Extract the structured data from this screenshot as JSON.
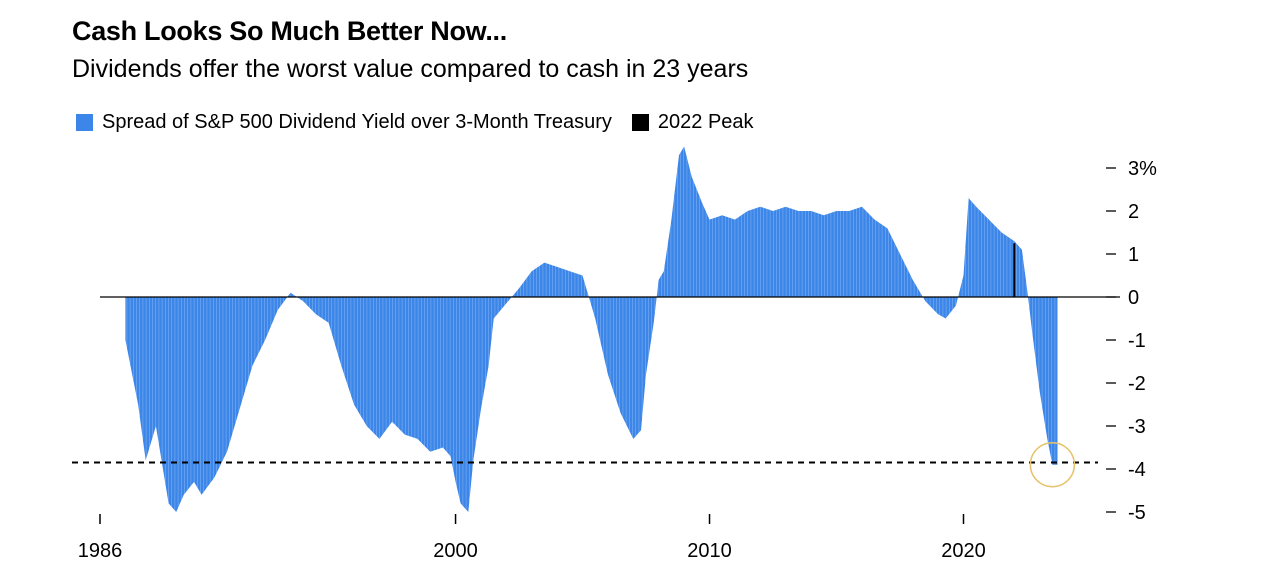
{
  "title": "Cash Looks So Much Better Now...",
  "subtitle": "Dividends offer the worst value compared to cash in 23 years",
  "legend": [
    {
      "label": "Spread of S&P 500 Dividend Yield over 3-Month Treasury",
      "color": "#3b86e8"
    },
    {
      "label": "2022 Peak",
      "color": "#000000"
    }
  ],
  "chart_data": {
    "type": "area",
    "xlim": [
      1986,
      2023.8
    ],
    "ylim": [
      -5.3,
      3.6
    ],
    "x_ticks": [
      1986,
      2000,
      2010,
      2020
    ],
    "x_tick_labels": [
      "1986",
      "2000",
      "2010",
      "2020"
    ],
    "y_ticks": [
      3,
      2,
      1,
      0,
      -1,
      -2,
      -3,
      -4,
      -5
    ],
    "y_tick_labels": [
      "3%",
      "2",
      "1",
      "0",
      "-1",
      "-2",
      "-3",
      "-4",
      "-5"
    ],
    "reference_line": {
      "y": -3.85,
      "style": "dashed"
    },
    "peak_marker": {
      "x": 2022.0,
      "y": 1.25
    },
    "highlight_circle": {
      "x": 2023.5,
      "y": -3.9
    },
    "series": [
      {
        "name": "Spread of S&P 500 Dividend Yield over 3-Month Treasury",
        "x": [
          1987.0,
          1987.5,
          1987.8,
          1988.2,
          1988.7,
          1989.0,
          1989.3,
          1989.7,
          1990.0,
          1990.5,
          1991.0,
          1991.5,
          1992.0,
          1992.5,
          1993.0,
          1993.5,
          1994.0,
          1994.5,
          1995.0,
          1995.5,
          1996.0,
          1996.5,
          1997.0,
          1997.5,
          1998.0,
          1998.5,
          1999.0,
          1999.5,
          1999.8,
          2000.0,
          2000.2,
          2000.5,
          2000.7,
          2001.0,
          2001.3,
          2001.5,
          2002.0,
          2002.5,
          2003.0,
          2003.5,
          2004.0,
          2004.5,
          2005.0,
          2005.5,
          2006.0,
          2006.5,
          2007.0,
          2007.3,
          2007.5,
          2007.8,
          2008.0,
          2008.2,
          2008.5,
          2008.8,
          2009.0,
          2009.3,
          2009.7,
          2010.0,
          2010.5,
          2011.0,
          2011.5,
          2012.0,
          2012.5,
          2013.0,
          2013.5,
          2014.0,
          2014.5,
          2015.0,
          2015.5,
          2016.0,
          2016.5,
          2017.0,
          2017.5,
          2018.0,
          2018.5,
          2019.0,
          2019.3,
          2019.7,
          2020.0,
          2020.2,
          2020.5,
          2021.0,
          2021.5,
          2022.0,
          2022.3,
          2022.5,
          2022.7,
          2023.0,
          2023.3,
          2023.5,
          2023.7
        ],
        "y": [
          -1.0,
          -2.5,
          -3.8,
          -3.0,
          -4.8,
          -5.0,
          -4.6,
          -4.3,
          -4.6,
          -4.2,
          -3.6,
          -2.6,
          -1.6,
          -1.0,
          -0.3,
          0.1,
          -0.1,
          -0.4,
          -0.6,
          -1.6,
          -2.5,
          -3.0,
          -3.3,
          -2.9,
          -3.2,
          -3.3,
          -3.6,
          -3.5,
          -3.7,
          -4.3,
          -4.8,
          -5.0,
          -3.8,
          -2.6,
          -1.6,
          -0.5,
          -0.15,
          0.2,
          0.6,
          0.8,
          0.7,
          0.6,
          0.5,
          -0.5,
          -1.8,
          -2.7,
          -3.3,
          -3.1,
          -1.8,
          -0.6,
          0.4,
          0.6,
          1.8,
          3.3,
          3.5,
          2.8,
          2.2,
          1.8,
          1.9,
          1.8,
          2.0,
          2.1,
          2.0,
          2.1,
          2.0,
          2.0,
          1.9,
          2.0,
          2.0,
          2.1,
          1.8,
          1.6,
          1.0,
          0.4,
          -0.1,
          -0.4,
          -0.5,
          -0.2,
          0.5,
          2.3,
          2.1,
          1.8,
          1.5,
          1.3,
          1.1,
          0.2,
          -0.8,
          -2.2,
          -3.3,
          -3.9,
          -3.9
        ]
      }
    ]
  }
}
